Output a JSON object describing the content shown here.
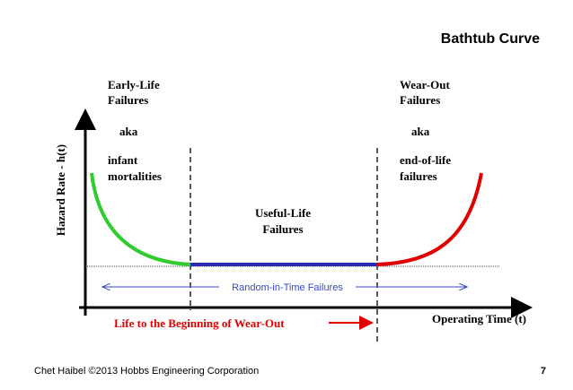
{
  "title": "Bathtub Curve",
  "y_axis_label": "Hazard Rate - h(t)",
  "x_axis_label": "Operating Time (t)",
  "early_life": {
    "lines": [
      "Early-Life",
      "Failures"
    ],
    "aka": "aka",
    "alt": [
      "infant",
      "mortalities"
    ]
  },
  "wear_out": {
    "lines": [
      "Wear-Out",
      "Failures"
    ],
    "aka": "aka",
    "alt": [
      "end-of-life",
      "failures"
    ]
  },
  "useful_life": {
    "lines": [
      "Useful-Life",
      "Failures"
    ]
  },
  "random_label": "Random-in-Time Failures",
  "life_label": "Life to the Beginning of Wear-Out",
  "footer": {
    "credit": "Chet Haibel  ©2013 Hobbs Engineering Corporation",
    "page": "7"
  }
}
